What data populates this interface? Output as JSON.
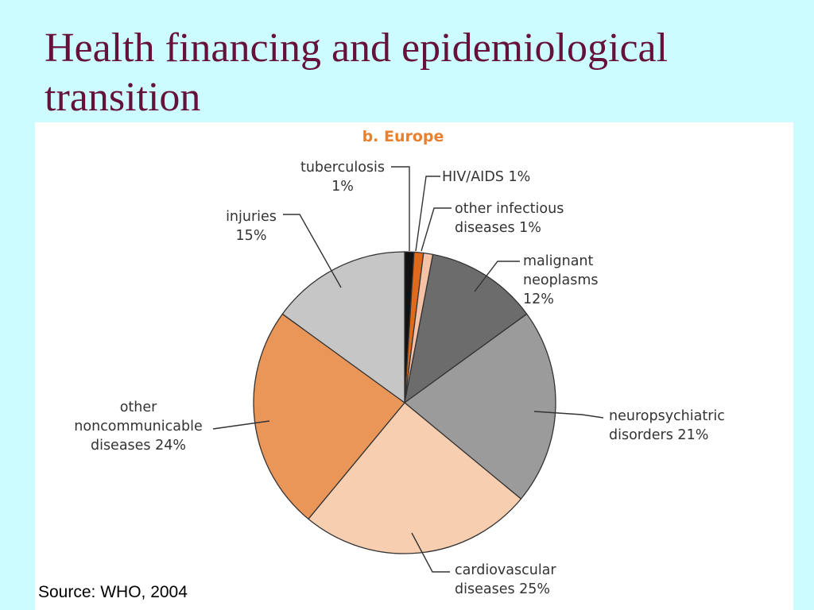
{
  "slide": {
    "title": "Health financing and epidemiological transition",
    "source": "Source: WHO, 2004"
  },
  "chart_data": {
    "type": "pie",
    "title": "b. Europe",
    "start_angle_deg": 0,
    "direction": "clockwise",
    "slices": [
      {
        "name": "tuberculosis",
        "value": 1,
        "label_lines": [
          "tuberculosis",
          "1%"
        ],
        "color": "#111111"
      },
      {
        "name": "HIV/AIDS",
        "value": 1,
        "label_lines": [
          "HIV/AIDS 1%"
        ],
        "color": "#e06a1c"
      },
      {
        "name": "other infectious diseases",
        "value": 1,
        "label_lines": [
          "other infectious",
          "diseases 1%"
        ],
        "color": "#f6c2a6"
      },
      {
        "name": "malignant neoplasms",
        "value": 12,
        "label_lines": [
          "malignant",
          "neoplasms",
          "12%"
        ],
        "color": "#6c6c6c"
      },
      {
        "name": "neuropsychiatric disorders",
        "value": 21,
        "label_lines": [
          "neuropsychiatric",
          "disorders 21%"
        ],
        "color": "#9b9b9b"
      },
      {
        "name": "cardiovascular diseases",
        "value": 25,
        "label_lines": [
          "cardiovascular",
          "diseases 25%"
        ],
        "color": "#f7ceb0"
      },
      {
        "name": "other noncommunicable diseases",
        "value": 24,
        "label_lines": [
          "other",
          "noncommunicable",
          "diseases 24%"
        ],
        "color": "#ea9658"
      },
      {
        "name": "injuries",
        "value": 15,
        "label_lines": [
          "injuries",
          "15%"
        ],
        "color": "#c6c6c6"
      }
    ]
  }
}
